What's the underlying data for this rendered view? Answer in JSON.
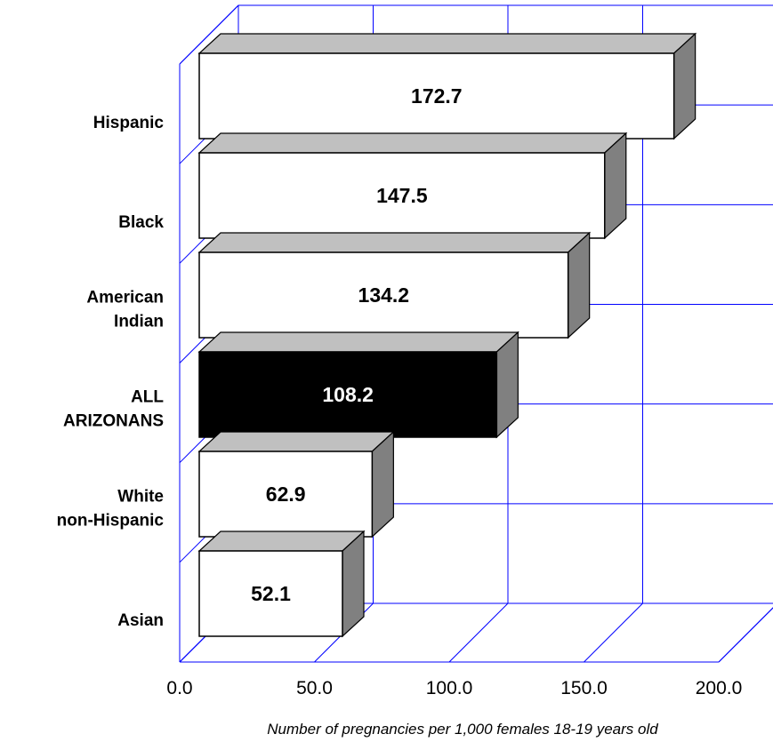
{
  "chart_data": {
    "type": "bar",
    "orientation": "horizontal",
    "categories": [
      [
        "Hispanic"
      ],
      [
        "Black"
      ],
      [
        "American",
        "Indian"
      ],
      [
        "ALL",
        "ARIZONANS"
      ],
      [
        "White",
        "non-Hispanic"
      ],
      [
        "Asian"
      ]
    ],
    "values": [
      172.7,
      147.5,
      134.2,
      108.2,
      62.9,
      52.1
    ],
    "value_labels": [
      "172.7",
      "147.5",
      "134.2",
      "108.2",
      "62.9",
      "52.1"
    ],
    "highlight_index": 3,
    "xlabel": "Number of pregnancies per 1,000 females 18-19  years old",
    "xlim": [
      0,
      200
    ],
    "xticks": [
      "0.0",
      "50.0",
      "100.0",
      "150.0",
      "200.0"
    ],
    "grid": true,
    "style": "3d",
    "colors": {
      "grid": "#0000ff",
      "bar_front": "#ffffff",
      "bar_top": "#c0c0c0",
      "bar_side": "#808080",
      "highlight_front": "#000000",
      "highlight_label": "#ffffff",
      "label": "#000000"
    }
  }
}
